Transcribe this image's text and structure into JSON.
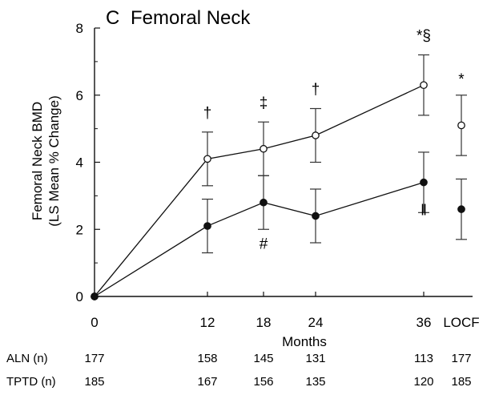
{
  "chart_data": {
    "type": "line",
    "panel_letter": "C",
    "title": "Femoral Neck",
    "ylabel_line1": "Femoral Neck BMD",
    "ylabel_line2": "(LS Mean % Change)",
    "xlabel": "Months",
    "ylim": [
      0,
      8
    ],
    "yticks": [
      "0",
      "2",
      "4",
      "6",
      "8"
    ],
    "xticks": [
      "0",
      "12",
      "18",
      "24",
      "36",
      "LOCF"
    ],
    "grid": false,
    "series": [
      {
        "marker": "open-circle",
        "points": [
          {
            "x": "0",
            "y": 0,
            "err": 0
          },
          {
            "x": "12",
            "y": 4.1,
            "err": 0.8
          },
          {
            "x": "18",
            "y": 4.4,
            "err": 0.8
          },
          {
            "x": "24",
            "y": 4.8,
            "err": 0.8
          },
          {
            "x": "36",
            "y": 6.3,
            "err": 0.9
          }
        ],
        "locf": {
          "y": 5.1,
          "err": 0.9
        }
      },
      {
        "marker": "filled-circle",
        "points": [
          {
            "x": "0",
            "y": 0,
            "err": 0
          },
          {
            "x": "12",
            "y": 2.1,
            "err": 0.8
          },
          {
            "x": "18",
            "y": 2.8,
            "err": 0.8
          },
          {
            "x": "24",
            "y": 2.4,
            "err": 0.8
          },
          {
            "x": "36",
            "y": 3.4,
            "err": 0.9
          }
        ],
        "locf": {
          "y": 2.6,
          "err": 0.9
        }
      }
    ],
    "annotations": [
      {
        "x": "12",
        "text": "†"
      },
      {
        "x": "18",
        "text": "‡"
      },
      {
        "x": "24",
        "text": "†"
      },
      {
        "x": "36",
        "text": "*§"
      },
      {
        "x": "LOCF",
        "text": "*"
      },
      {
        "x": "18",
        "text": "#"
      },
      {
        "x": "36",
        "text": "‖"
      }
    ],
    "n_table": [
      {
        "label": "ALN (n)",
        "values": [
          "177",
          "158",
          "145",
          "131",
          "113",
          "177"
        ]
      },
      {
        "label": "TPTD (n)",
        "values": [
          "185",
          "167",
          "156",
          "135",
          "120",
          "185"
        ]
      }
    ]
  }
}
